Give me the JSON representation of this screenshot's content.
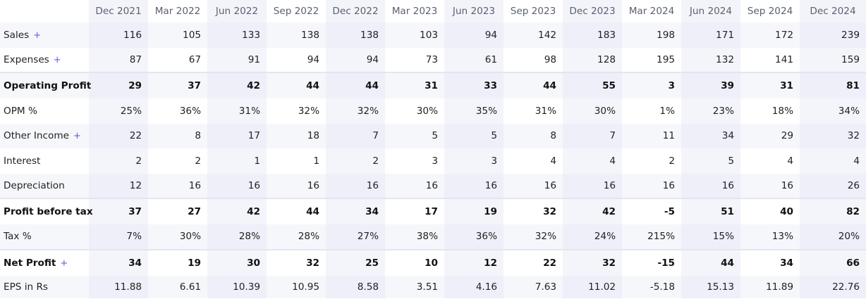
{
  "periods": [
    "Dec 2021",
    "Mar 2022",
    "Jun 2022",
    "Sep 2022",
    "Dec 2022",
    "Mar 2023",
    "Jun 2023",
    "Sep 2023",
    "Dec 2023",
    "Mar 2024",
    "Jun 2024",
    "Sep 2024",
    "Dec 2024"
  ],
  "expand_symbol": "+",
  "rows": [
    {
      "label": "Sales",
      "expandable": true,
      "bold": false,
      "values": [
        "116",
        "105",
        "133",
        "138",
        "138",
        "103",
        "94",
        "142",
        "183",
        "198",
        "171",
        "172",
        "239"
      ]
    },
    {
      "label": "Expenses",
      "expandable": true,
      "bold": false,
      "values": [
        "87",
        "67",
        "91",
        "94",
        "94",
        "73",
        "61",
        "98",
        "128",
        "195",
        "132",
        "141",
        "159"
      ]
    },
    {
      "label": "Operating Profit",
      "expandable": false,
      "bold": true,
      "values": [
        "29",
        "37",
        "42",
        "44",
        "44",
        "31",
        "33",
        "44",
        "55",
        "3",
        "39",
        "31",
        "81"
      ]
    },
    {
      "label": "OPM %",
      "expandable": false,
      "bold": false,
      "values": [
        "25%",
        "36%",
        "31%",
        "32%",
        "32%",
        "30%",
        "35%",
        "31%",
        "30%",
        "1%",
        "23%",
        "18%",
        "34%"
      ]
    },
    {
      "label": "Other Income",
      "expandable": true,
      "bold": false,
      "values": [
        "22",
        "8",
        "17",
        "18",
        "7",
        "5",
        "5",
        "8",
        "7",
        "11",
        "34",
        "29",
        "32"
      ]
    },
    {
      "label": "Interest",
      "expandable": false,
      "bold": false,
      "values": [
        "2",
        "2",
        "1",
        "1",
        "2",
        "3",
        "3",
        "4",
        "4",
        "2",
        "5",
        "4",
        "4"
      ]
    },
    {
      "label": "Depreciation",
      "expandable": false,
      "bold": false,
      "values": [
        "12",
        "16",
        "16",
        "16",
        "16",
        "16",
        "16",
        "16",
        "16",
        "16",
        "16",
        "16",
        "26"
      ]
    },
    {
      "label": "Profit before tax",
      "expandable": false,
      "bold": true,
      "values": [
        "37",
        "27",
        "42",
        "44",
        "34",
        "17",
        "19",
        "32",
        "42",
        "-5",
        "51",
        "40",
        "82"
      ]
    },
    {
      "label": "Tax %",
      "expandable": false,
      "bold": false,
      "values": [
        "7%",
        "30%",
        "28%",
        "28%",
        "27%",
        "38%",
        "36%",
        "32%",
        "24%",
        "215%",
        "15%",
        "13%",
        "20%"
      ]
    },
    {
      "label": "Net Profit",
      "expandable": true,
      "bold": true,
      "values": [
        "34",
        "19",
        "30",
        "32",
        "25",
        "10",
        "12",
        "22",
        "32",
        "-15",
        "44",
        "34",
        "66"
      ]
    },
    {
      "label": "EPS in Rs",
      "expandable": false,
      "bold": false,
      "values": [
        "11.88",
        "6.61",
        "10.39",
        "10.95",
        "8.58",
        "3.51",
        "4.16",
        "7.63",
        "11.02",
        "-5.18",
        "15.13",
        "11.89",
        "22.76"
      ]
    }
  ]
}
